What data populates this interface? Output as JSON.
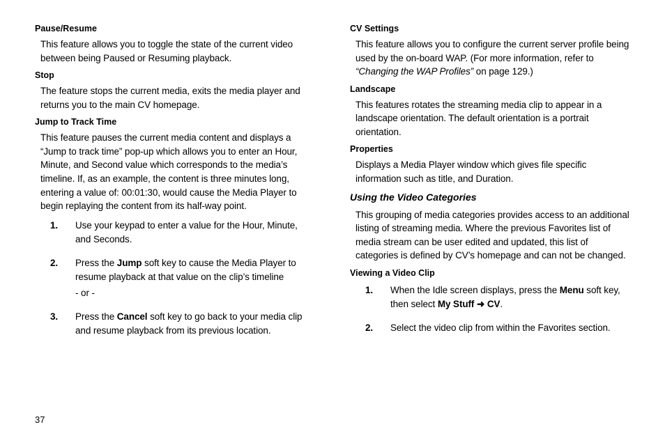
{
  "pageNumber": "37",
  "left": {
    "s1": {
      "h": "Pause/Resume",
      "p": "This feature allows you to toggle the state of the current video between being Paused or Resuming playback."
    },
    "s2": {
      "h": "Stop",
      "p": "The feature stops the current media, exits the media player and returns you to the main CV homepage."
    },
    "s3": {
      "h": "Jump to Track Time",
      "p": "This feature pauses the current media content and displays a “Jump to track time” pop-up which allows you to enter an Hour, Minute, and Second value which corresponds to the media’s timeline. If, as an example, the content is three minutes long, entering a value of: 00:01:30, would cause the Media Player to begin replaying the content from its half-way point.",
      "li1": {
        "n": "1.",
        "t": "Use your keypad to enter a value for the Hour, Minute, and Seconds."
      },
      "li2": {
        "n": "2.",
        "pre": "Press the ",
        "bold": "Jump",
        "post": " soft key to cause the Media Player to resume playback at that value on the clip’s timeline",
        "or": "- or -"
      },
      "li3": {
        "n": "3.",
        "pre": "Press the ",
        "bold": "Cancel",
        "post": " soft key to go back to your media clip and resume playback from its previous location."
      }
    }
  },
  "right": {
    "s1": {
      "h": "CV Settings",
      "pre": "This feature allows you to configure the current server profile being used by the on-board WAP. (For more information, refer to ",
      "em": "“Changing the WAP Profiles” ",
      "post": " on page 129.)"
    },
    "s2": {
      "h": "Landscape",
      "p": "This features rotates the streaming media clip to appear in a landscape orientation. The default orientation is a portrait orientation."
    },
    "s3": {
      "h": "Properties",
      "p": "Displays a Media Player window which gives file specific information such as title, and Duration."
    },
    "s4": {
      "h": "Using the Video Categories",
      "p": "This grouping of media categories provides access to an additional listing of streaming media. Where the previous Favorites list of media stream can be user edited and updated, this list of categories is defined by CV’s homepage and can not be changed."
    },
    "s5": {
      "h": "Viewing a Video Clip",
      "li1": {
        "n": "1.",
        "t1": "When the Idle screen displays, press the ",
        "b1": "Menu",
        "t2": " soft key, then select ",
        "b2": "My Stuff",
        "arrow": " ➜ ",
        "b3": "CV",
        "t3": "."
      },
      "li2": {
        "n": "2.",
        "t": "Select the video clip from within the Favorites section."
      }
    }
  }
}
